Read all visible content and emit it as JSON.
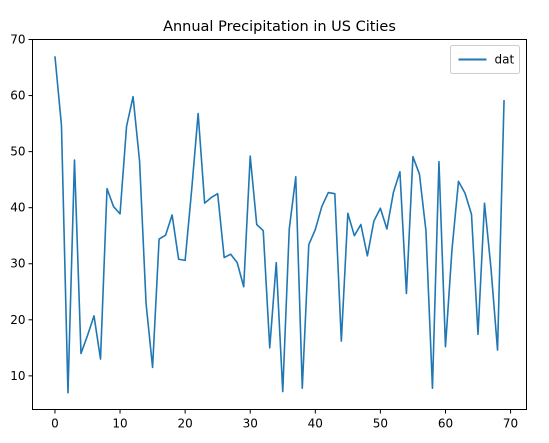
{
  "chart_data": {
    "type": "line",
    "title": "Annual Precipitation in US Cities",
    "xlabel": "",
    "ylabel": "",
    "xlim": [
      -3.45,
      72.45
    ],
    "ylim": [
      4.0,
      70.0
    ],
    "xticks": [
      0,
      10,
      20,
      30,
      40,
      50,
      60,
      70
    ],
    "yticks": [
      10,
      20,
      30,
      40,
      50,
      60,
      70
    ],
    "grid": false,
    "legend": "upper right",
    "series": [
      {
        "name": "dat",
        "color": "#1f77b4",
        "x": [
          0,
          1,
          2,
          3,
          4,
          5,
          6,
          7,
          8,
          9,
          10,
          11,
          12,
          13,
          14,
          15,
          16,
          17,
          18,
          19,
          20,
          21,
          22,
          23,
          24,
          25,
          26,
          27,
          28,
          29,
          30,
          31,
          32,
          33,
          34,
          35,
          36,
          37,
          38,
          39,
          40,
          41,
          42,
          43,
          44,
          45,
          46,
          47,
          48,
          49,
          50,
          51,
          52,
          53,
          54,
          55,
          56,
          57,
          58,
          59,
          60,
          61,
          62,
          63,
          64,
          65,
          66,
          67,
          68,
          69
        ],
        "y": [
          67.0,
          54.7,
          7.0,
          48.5,
          14.0,
          17.2,
          20.7,
          13.0,
          43.4,
          40.2,
          38.9,
          54.5,
          59.8,
          48.3,
          22.9,
          11.5,
          34.4,
          35.1,
          38.7,
          30.8,
          30.6,
          43.1,
          56.8,
          40.8,
          41.8,
          42.5,
          31.1,
          31.7,
          30.2,
          25.9,
          49.2,
          37.0,
          35.9,
          15.0,
          30.2,
          7.2,
          36.2,
          45.5,
          7.8,
          33.4,
          36.1,
          40.2,
          42.7,
          42.5,
          16.2,
          39.0,
          35.0,
          37.0,
          31.4,
          37.6,
          39.9,
          36.2,
          42.7,
          46.4,
          24.7,
          49.1,
          46.0,
          35.9,
          7.8,
          48.2,
          15.2,
          32.5,
          44.7,
          42.6,
          38.8,
          17.4,
          40.8,
          29.1,
          14.6,
          59.2
        ]
      }
    ]
  }
}
